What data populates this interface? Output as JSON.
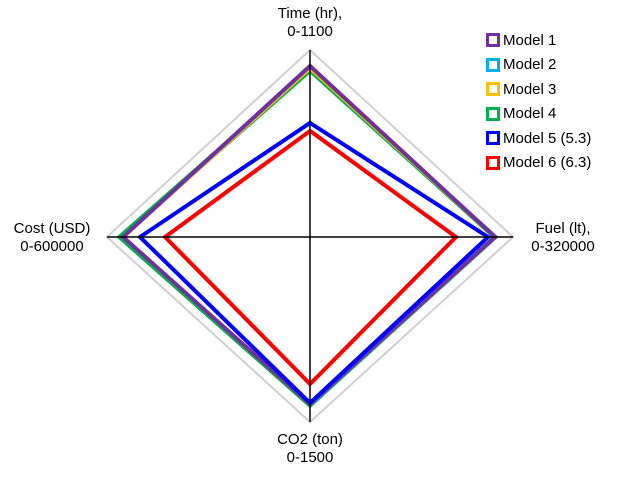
{
  "chart_data": {
    "type": "radar",
    "title": "",
    "axes": [
      {
        "name": "Time (hr),",
        "range_label": "0-1100",
        "min": 0,
        "max": 1100,
        "direction": "top"
      },
      {
        "name": "Fuel (lt),",
        "range_label": "0-320000",
        "min": 0,
        "max": 320000,
        "direction": "right"
      },
      {
        "name": "CO2 (ton)",
        "range_label": "0-1500",
        "min": 0,
        "max": 1500,
        "direction": "bottom"
      },
      {
        "name": "Cost (USD)",
        "range_label": "0-600000",
        "min": 0,
        "max": 600000,
        "direction": "left"
      }
    ],
    "series": [
      {
        "name": "Model 1",
        "color": "#7030A0",
        "values": [
          1006,
          291600,
          1355,
          552700
        ]
      },
      {
        "name": "Model 2",
        "color": "#00B0F0",
        "values": [
          994,
          291600,
          1355,
          552700
        ]
      },
      {
        "name": "Model 3",
        "color": "#FFC000",
        "values": [
          994,
          291600,
          1355,
          552700
        ]
      },
      {
        "name": "Model 4",
        "color": "#00B050",
        "values": [
          982,
          291600,
          1362,
          561600
        ]
      },
      {
        "name": "Model 5 (5.3)",
        "color": "#0000FF",
        "values": [
          671,
          280600,
          1346,
          502500
        ]
      },
      {
        "name": "Model 6 (6.3)",
        "color": "#FF0000",
        "values": [
          624,
          230000,
          1192,
          428600
        ]
      }
    ],
    "grid": {
      "outer_ring_color": "#D0D0D0",
      "axis_color": "#000000"
    },
    "legend_position": "top-right"
  },
  "labels": {
    "time_line1": "Time (hr),",
    "time_line2": "0-1100",
    "fuel_line1": "Fuel (lt),",
    "fuel_line2": "0-320000",
    "co2_line1": "CO2 (ton)",
    "co2_line2": "0-1500",
    "cost_line1": "Cost (USD)",
    "cost_line2": "0-600000"
  },
  "legend": [
    {
      "label": "Model 1",
      "color": "#7030A0"
    },
    {
      "label": "Model 2",
      "color": "#00B0F0"
    },
    {
      "label": "Model 3",
      "color": "#FFC000"
    },
    {
      "label": "Model 4",
      "color": "#00B050"
    },
    {
      "label": "Model 5 (5.3)",
      "color": "#0000FF"
    },
    {
      "label": "Model 6 (6.3)",
      "color": "#FF0000"
    }
  ]
}
